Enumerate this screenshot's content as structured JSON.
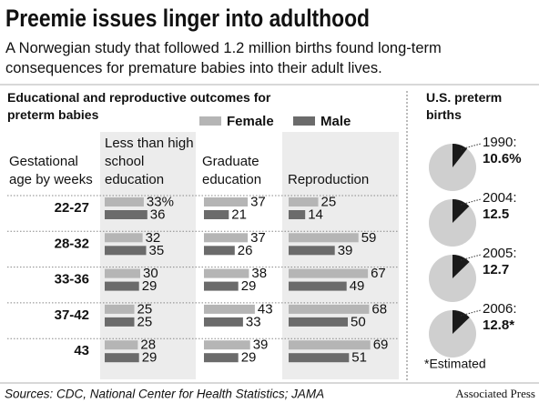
{
  "header": {
    "title": "Preemie issues linger into adulthood",
    "subtitle": "A Norwegian study that followed 1.2 million births found long-term consequences for premature babies into their adult lives."
  },
  "chart_data": [
    {
      "type": "bar",
      "title": "Educational and reproductive outcomes for preterm babies",
      "row_header": "Gestational age by weeks",
      "categories": [
        "22-27",
        "28-32",
        "33-36",
        "37-42",
        "43"
      ],
      "legend": [
        {
          "name": "Female",
          "color": "#b5b5b5"
        },
        {
          "name": "Male",
          "color": "#6b6b6b"
        }
      ],
      "panels": [
        {
          "title": "Less than high school education",
          "values": [
            [
              33,
              32,
              30,
              25,
              28
            ],
            [
              36,
              35,
              29,
              25,
              29
            ]
          ],
          "value_labels": [
            [
              "33%",
              "32",
              "30",
              "25",
              "28"
            ],
            [
              "36",
              "35",
              "29",
              "25",
              "29"
            ]
          ]
        },
        {
          "title": "Graduate education",
          "values": [
            [
              37,
              37,
              38,
              43,
              39
            ],
            [
              21,
              26,
              29,
              33,
              29
            ]
          ]
        },
        {
          "title": "Reproduction",
          "values": [
            [
              25,
              59,
              67,
              68,
              69
            ],
            [
              14,
              39,
              49,
              50,
              51
            ]
          ]
        }
      ]
    },
    {
      "type": "pie",
      "title": "U.S. preterm births",
      "categories": [
        "1990:",
        "2004:",
        "2005:",
        "2006:"
      ],
      "values": [
        10.6,
        12.5,
        12.7,
        12.8
      ],
      "value_labels": [
        "10.6%",
        "12.5",
        "12.7",
        "12.8*"
      ],
      "color": "#1a1a1a",
      "rest_color": "#cfcfcf",
      "note": "*Estimated"
    }
  ],
  "footer": {
    "source": "Sources: CDC, National Center for Health Statistics; JAMA",
    "credit": "Associated Press"
  }
}
